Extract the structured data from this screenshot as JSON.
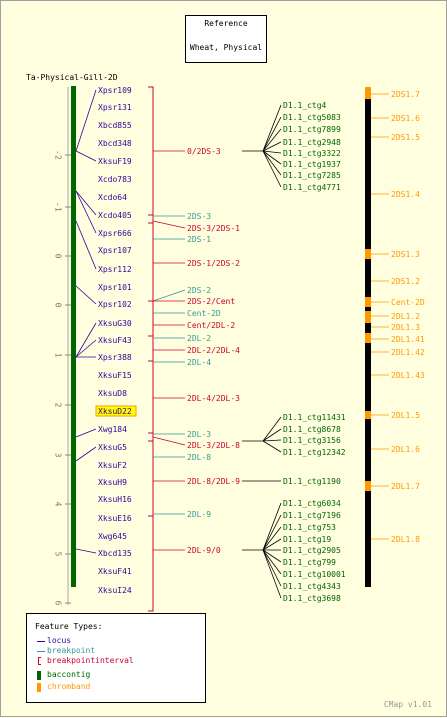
{
  "reference": {
    "line1": "Reference",
    "line2": "Wheat, Physical"
  },
  "map_title": "Ta-Physical-Gill-2D",
  "version": "CMap v1.01",
  "colors": {
    "background": "#ffffe0",
    "locus": "#330099",
    "breakpoint": "#339999",
    "breakpointinterval": "#cc0033",
    "baccontig": "#006600",
    "chromband": "#ff9900",
    "contig": "#006600",
    "highlight": "#ffff00"
  },
  "scale": {
    "ticks": [
      "-2",
      "-1",
      "0",
      "0",
      "1",
      "2",
      "3",
      "4",
      "5",
      "6"
    ]
  },
  "loci": [
    {
      "label": "Xpsr109"
    },
    {
      "label": "Xpsr131"
    },
    {
      "label": "Xbcd855"
    },
    {
      "label": "Xbcd348"
    },
    {
      "label": "XksuF19"
    },
    {
      "label": "Xcdo783"
    },
    {
      "label": "Xcdo64"
    },
    {
      "label": "Xcdo405"
    },
    {
      "label": "Xpsr666"
    },
    {
      "label": "Xpsr107"
    },
    {
      "label": "Xpsr112"
    },
    {
      "label": "Xpsr101"
    },
    {
      "label": "Xpsr102"
    },
    {
      "label": "XksuG30"
    },
    {
      "label": "XksuF43"
    },
    {
      "label": "Xpsr388"
    },
    {
      "label": "XksuF15"
    },
    {
      "label": "XksuD8"
    },
    {
      "label": "XksuD22",
      "highlight": true
    },
    {
      "label": "Xwg184"
    },
    {
      "label": "XksuG5"
    },
    {
      "label": "XksuF2"
    },
    {
      "label": "XksuH9"
    },
    {
      "label": "XksuH16"
    },
    {
      "label": "XksuE16"
    },
    {
      "label": "Xwg645"
    },
    {
      "label": "Xbcd135"
    },
    {
      "label": "XksuF41"
    },
    {
      "label": "XksuI24"
    }
  ],
  "intervals": [
    {
      "label": "0/2DS-3",
      "type": "breakpointinterval"
    },
    {
      "label": "2DS-3",
      "type": "breakpoint"
    },
    {
      "label": "2DS-3/2DS-1",
      "type": "breakpointinterval"
    },
    {
      "label": "2DS-1",
      "type": "breakpoint"
    },
    {
      "label": "2DS-1/2DS-2",
      "type": "breakpointinterval"
    },
    {
      "label": "2DS-2",
      "type": "breakpoint"
    },
    {
      "label": "2DS-2/Cent",
      "type": "breakpointinterval"
    },
    {
      "label": "Cent-2D",
      "type": "breakpoint"
    },
    {
      "label": "Cent/2DL-2",
      "type": "breakpointinterval"
    },
    {
      "label": "2DL-2",
      "type": "breakpoint"
    },
    {
      "label": "2DL-2/2DL-4",
      "type": "breakpointinterval"
    },
    {
      "label": "2DL-4",
      "type": "breakpoint"
    },
    {
      "label": "2DL-4/2DL-3",
      "type": "breakpointinterval"
    },
    {
      "label": "2DL-3",
      "type": "breakpoint"
    },
    {
      "label": "2DL-3/2DL-8",
      "type": "breakpointinterval"
    },
    {
      "label": "2DL-8",
      "type": "breakpoint"
    },
    {
      "label": "2DL-8/2DL-9",
      "type": "breakpointinterval"
    },
    {
      "label": "2DL-9",
      "type": "breakpoint"
    },
    {
      "label": "2DL-9/0",
      "type": "breakpointinterval"
    }
  ],
  "contigs": [
    {
      "label": "D1.1_ctg4"
    },
    {
      "label": "D1.1_ctg5083"
    },
    {
      "label": "D1.1_ctg7899"
    },
    {
      "label": "D1.1_ctg2948"
    },
    {
      "label": "D1.1_ctg3322"
    },
    {
      "label": "D1.1_ctg1937"
    },
    {
      "label": "D1.1_ctg7285"
    },
    {
      "label": "D1.1_ctg4771"
    },
    {
      "label": "D1.1_ctg11431"
    },
    {
      "label": "D1.1_ctg8678"
    },
    {
      "label": "D1.1_ctg3156"
    },
    {
      "label": "D1.1_ctg12342"
    },
    {
      "label": "D1.1_ctg1190"
    },
    {
      "label": "D1.1_ctg6034"
    },
    {
      "label": "D1.1_ctg7196"
    },
    {
      "label": "D1.1_ctg753"
    },
    {
      "label": "D1.1_ctg19"
    },
    {
      "label": "D1.1_ctg2905"
    },
    {
      "label": "D1.1_ctg799"
    },
    {
      "label": "D1.1_ctg10001"
    },
    {
      "label": "D1.1_ctg4343"
    },
    {
      "label": "D1.1_ctg3698"
    }
  ],
  "bands": [
    {
      "label": "2DS1.7"
    },
    {
      "label": "2DS1.6"
    },
    {
      "label": "2DS1.5"
    },
    {
      "label": "2DS1.4"
    },
    {
      "label": "2DS1.3"
    },
    {
      "label": "2DS1.2"
    },
    {
      "label": "Cent-2D"
    },
    {
      "label": "2DL1.2"
    },
    {
      "label": "2DL1.3"
    },
    {
      "label": "2DL1.41"
    },
    {
      "label": "2DL1.42"
    },
    {
      "label": "2DL1.43"
    },
    {
      "label": "2DL1.5"
    },
    {
      "label": "2DL1.6"
    },
    {
      "label": "2DL1.7"
    },
    {
      "label": "2DL1.8"
    }
  ],
  "legend": {
    "title": "Feature Types:",
    "items": [
      {
        "label": "locus",
        "type": "locus"
      },
      {
        "label": "breakpoint",
        "type": "breakpoint"
      },
      {
        "label": "breakpointinterval",
        "type": "breakpointinterval"
      },
      {
        "label": "baccontig",
        "type": "baccontig"
      },
      {
        "label": "chromband",
        "type": "chromband"
      }
    ]
  }
}
